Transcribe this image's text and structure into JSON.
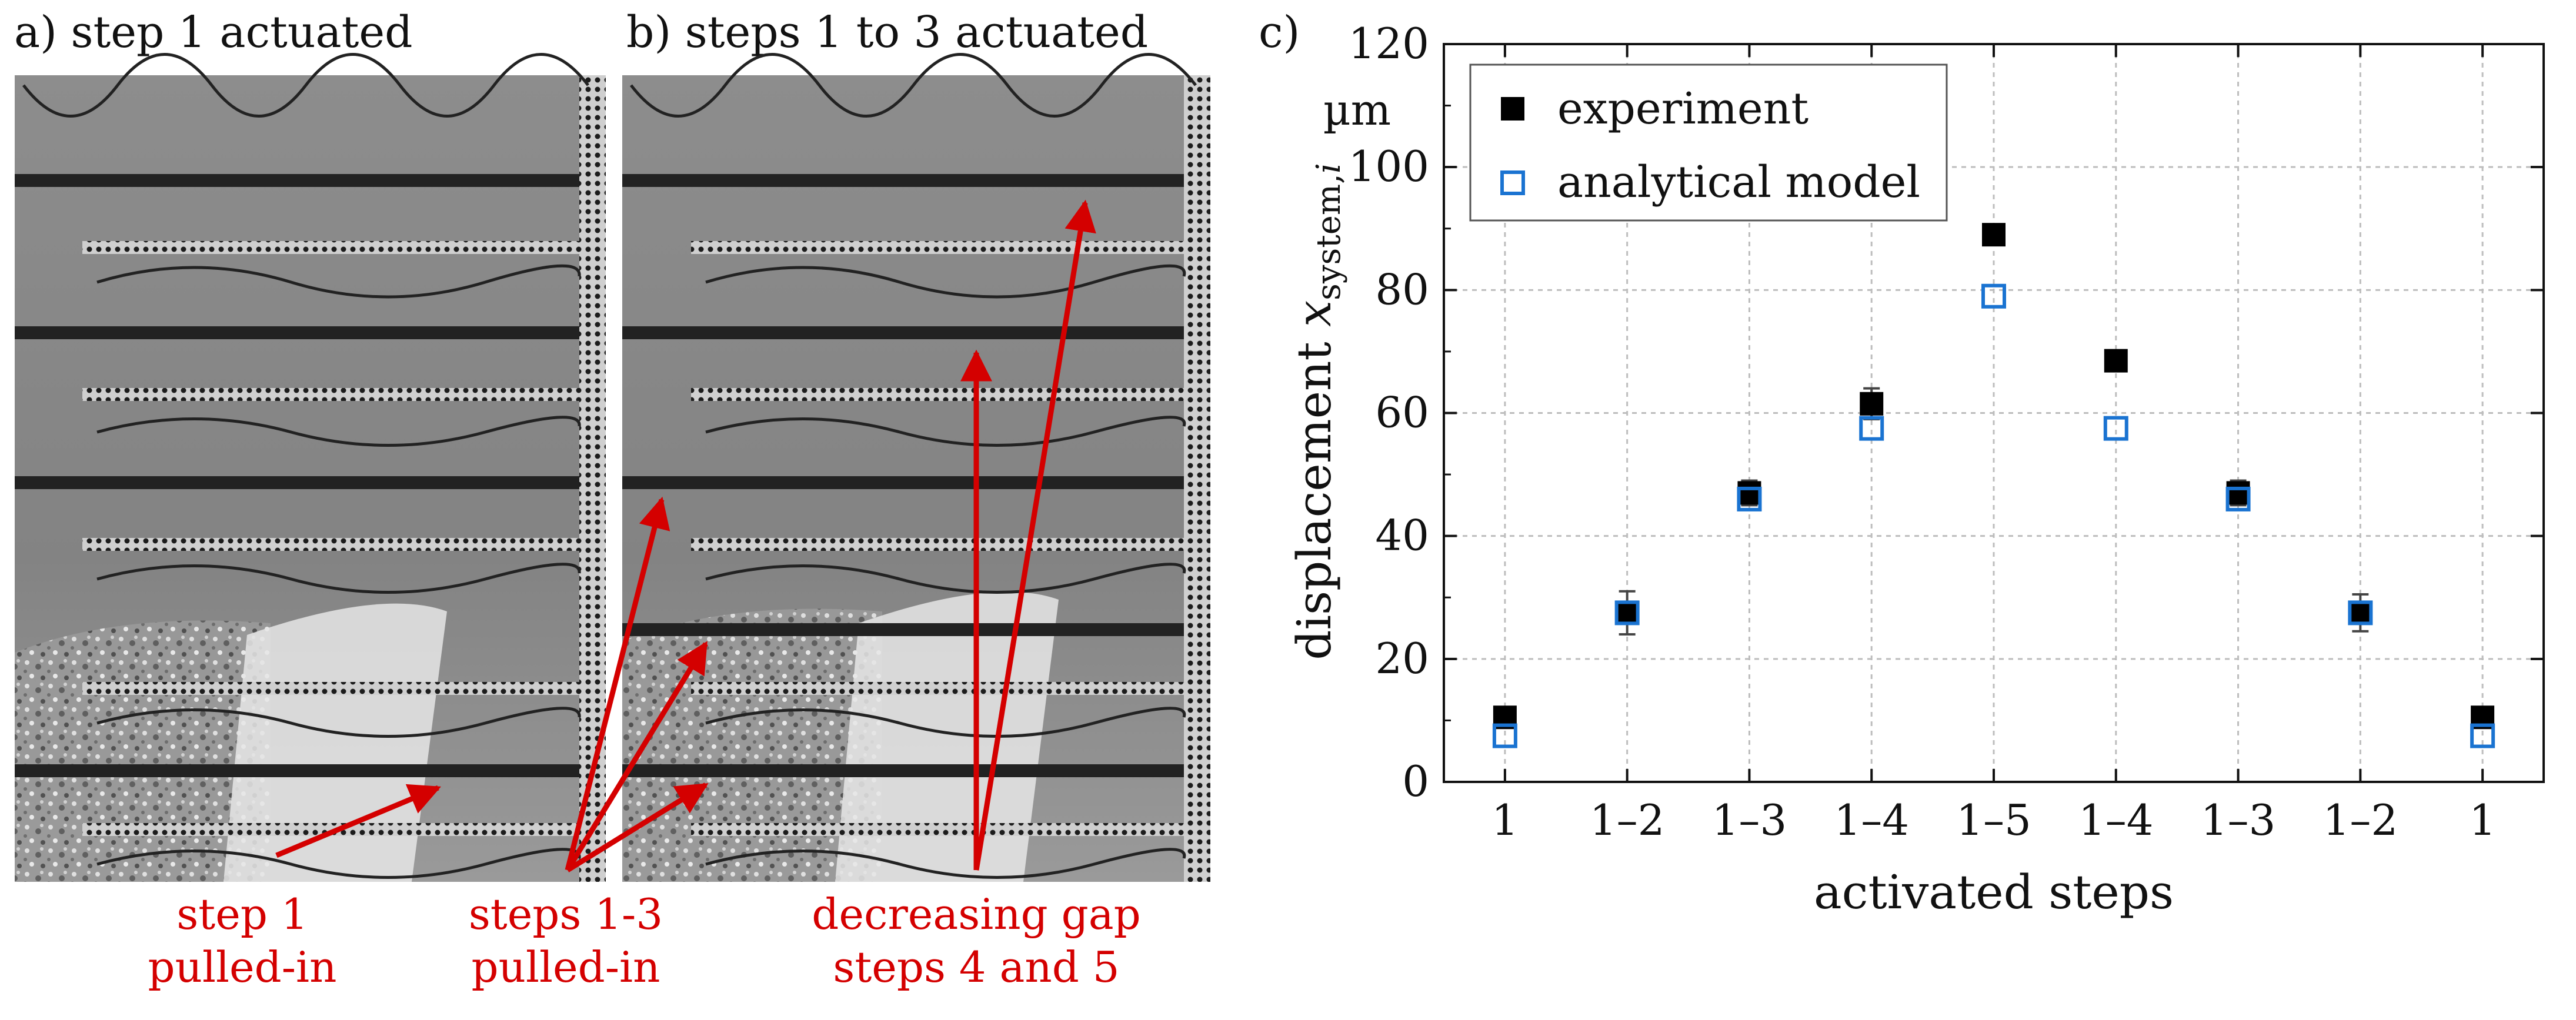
{
  "panels": {
    "a": {
      "caption": "a) step 1 actuated"
    },
    "b": {
      "caption": "b) steps 1 to 3 actuated"
    },
    "c": {
      "caption": "c)"
    }
  },
  "annotations": [
    {
      "line1": "step 1",
      "line2": "pulled-in"
    },
    {
      "line1": "steps 1-3",
      "line2": "pulled-in"
    },
    {
      "line1": "decreasing gap",
      "line2": "steps 4 and 5"
    }
  ],
  "colors": {
    "annotation": "#d40000",
    "experiment": "#000000",
    "model": "#1a73d1"
  },
  "chart_data": {
    "type": "scatter",
    "xlabel": "activated steps",
    "ylabel_main": "displacement ",
    "ylabel_var": "x",
    "ylabel_sub": "system,",
    "ylabel_sub_i": "i",
    "unit_label": "µm",
    "categories": [
      "1",
      "1–2",
      "1–3",
      "1–4",
      "1–5",
      "1–4",
      "1–3",
      "1–2",
      "1"
    ],
    "ylim": [
      0,
      120
    ],
    "yticks": [
      0,
      20,
      40,
      60,
      80,
      100,
      120
    ],
    "grid": true,
    "legend_position": "top-left",
    "series": [
      {
        "name": "experiment",
        "marker": "filled-square",
        "values": [
          10.5,
          27.5,
          47,
          61.5,
          89,
          68.5,
          47,
          27.5,
          10.5
        ],
        "errors": [
          1.5,
          3.5,
          2,
          2.5,
          1.5,
          1.5,
          2,
          3,
          1
        ]
      },
      {
        "name": "analytical model",
        "marker": "open-square",
        "values": [
          7.5,
          27.5,
          46,
          57.5,
          79,
          57.5,
          46,
          27.5,
          7.5
        ]
      }
    ]
  }
}
